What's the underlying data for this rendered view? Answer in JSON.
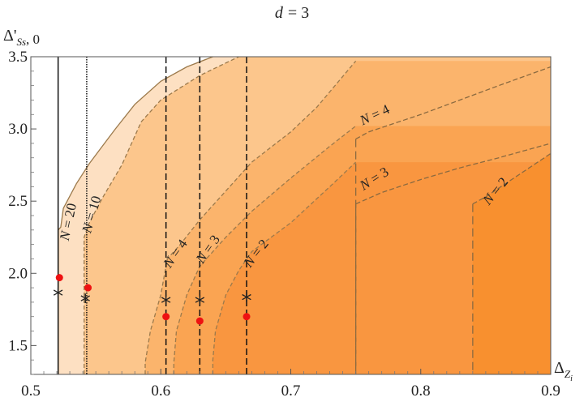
{
  "chart_data": {
    "type": "area",
    "title_prefix": "d",
    "title_value": "= 3",
    "xlabel_main": "Δ",
    "xlabel_sub": "Z",
    "xlabel_subsub": "i",
    "ylabel_main": "Δ'",
    "ylabel_sub": "Ss",
    "ylabel_tail": ", 0",
    "xlim": [
      0.5,
      0.9
    ],
    "ylim": [
      1.3,
      3.5
    ],
    "xticks": [
      0.5,
      0.6,
      0.7,
      0.8,
      0.9
    ],
    "yticks": [
      1.5,
      2.0,
      2.5,
      3.0,
      3.5
    ],
    "grid": false,
    "regions": [
      {
        "color": "#fde0c2",
        "x0": 0.521,
        "kink_y": 2.3,
        "edge": [
          [
            0.523,
            2.32
          ],
          [
            0.525,
            2.45
          ],
          [
            0.535,
            2.62
          ],
          [
            0.545,
            2.76
          ],
          [
            0.555,
            2.88
          ],
          [
            0.565,
            3.0
          ],
          [
            0.58,
            3.17
          ],
          [
            0.6,
            3.33
          ],
          [
            0.62,
            3.43
          ],
          [
            0.64,
            3.5
          ]
        ]
      },
      {
        "color": "#fcc68c",
        "x0": 0.541,
        "kink_y": 2.25,
        "edge": [
          [
            0.545,
            2.35
          ],
          [
            0.555,
            2.52
          ],
          [
            0.57,
            2.75
          ],
          [
            0.585,
            3.05
          ],
          [
            0.6,
            3.2
          ],
          [
            0.63,
            3.37
          ],
          [
            0.66,
            3.5
          ]
        ]
      },
      {
        "color": "#fbb46c",
        "x0": 0.588,
        "kink_y": 1.38,
        "edge": [
          [
            0.592,
            1.6
          ],
          [
            0.6,
            1.85
          ],
          [
            0.605,
            2.1
          ],
          [
            0.615,
            2.2
          ],
          [
            0.63,
            2.37
          ],
          [
            0.65,
            2.57
          ],
          [
            0.67,
            2.77
          ],
          [
            0.7,
            2.98
          ],
          [
            0.72,
            3.15
          ],
          [
            0.75,
            3.47
          ]
        ]
      },
      {
        "color": "#faa452",
        "x0": 0.61,
        "kink_y": 1.38,
        "edge": [
          [
            0.612,
            1.6
          ],
          [
            0.62,
            1.85
          ],
          [
            0.63,
            2.05
          ],
          [
            0.65,
            2.25
          ],
          [
            0.67,
            2.43
          ],
          [
            0.7,
            2.66
          ],
          [
            0.73,
            2.88
          ],
          [
            0.75,
            3.02
          ]
        ]
      },
      {
        "color": "#f99640",
        "x0": 0.64,
        "kink_y": 1.4,
        "edge": [
          [
            0.642,
            1.6
          ],
          [
            0.65,
            1.85
          ],
          [
            0.66,
            2.02
          ],
          [
            0.67,
            2.15
          ],
          [
            0.7,
            2.35
          ],
          [
            0.73,
            2.6
          ],
          [
            0.75,
            2.77
          ]
        ]
      }
    ],
    "right_curves": [
      {
        "label": "N = 4",
        "points": [
          [
            0.75,
            2.93
          ],
          [
            0.76,
            2.98
          ],
          [
            0.78,
            3.04
          ],
          [
            0.8,
            3.1
          ],
          [
            0.83,
            3.2
          ],
          [
            0.86,
            3.3
          ],
          [
            0.9,
            3.43
          ]
        ]
      },
      {
        "label": "N = 3",
        "points": [
          [
            0.75,
            2.48
          ],
          [
            0.77,
            2.56
          ],
          [
            0.8,
            2.65
          ],
          [
            0.83,
            2.73
          ],
          [
            0.86,
            2.8
          ],
          [
            0.9,
            2.9
          ]
        ]
      },
      {
        "label": "N = 2",
        "start_x": 0.84,
        "points": [
          [
            0.84,
            2.48
          ],
          [
            0.85,
            2.53
          ],
          [
            0.87,
            2.65
          ],
          [
            0.89,
            2.77
          ],
          [
            0.9,
            2.83
          ]
        ]
      }
    ],
    "vlines": [
      {
        "x": 0.521,
        "style": "solid",
        "top": 3.5
      },
      {
        "x": 0.543,
        "style": "dotted",
        "top": 3.5
      },
      {
        "x": 0.604,
        "style": "dashed",
        "top": 3.5
      },
      {
        "x": 0.63,
        "style": "dashed",
        "top": 3.5
      },
      {
        "x": 0.666,
        "style": "dashed",
        "top": 3.5
      }
    ],
    "labels": [
      {
        "text": "N = 20",
        "x": 0.532,
        "y": 2.35
      },
      {
        "text": "N = 10",
        "x": 0.55,
        "y": 2.4
      },
      {
        "text": "N = 4",
        "x": 0.614,
        "y": 2.12
      },
      {
        "text": "N = 3",
        "x": 0.639,
        "y": 2.15
      },
      {
        "text": "N = 2",
        "x": 0.676,
        "y": 2.12
      },
      {
        "text": "N = 4",
        "x": 0.766,
        "y": 3.07
      },
      {
        "text": "N = 3",
        "x": 0.766,
        "y": 2.63
      },
      {
        "text": "N = 2",
        "x": 0.86,
        "y": 2.55
      }
    ],
    "red_points": [
      {
        "x": 0.522,
        "y": 1.97
      },
      {
        "x": 0.544,
        "y": 1.9
      },
      {
        "x": 0.604,
        "y": 1.7
      },
      {
        "x": 0.63,
        "y": 1.67
      },
      {
        "x": 0.666,
        "y": 1.7
      }
    ],
    "star_points": [
      {
        "x": 0.521,
        "y": 1.87
      },
      {
        "x": 0.542,
        "y": 1.83
      },
      {
        "x": 0.604,
        "y": 1.82
      },
      {
        "x": 0.63,
        "y": 1.82
      },
      {
        "x": 0.666,
        "y": 1.84
      }
    ]
  }
}
